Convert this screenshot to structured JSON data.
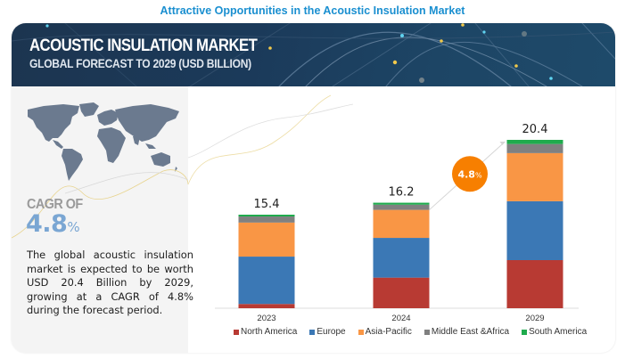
{
  "page": {
    "title": "Attractive Opportunities in the Acoustic Insulation Market"
  },
  "banner": {
    "title": "ACOUSTIC INSULATION MARKET",
    "subtitle": "GLOBAL FORECAST TO 2029 (USD BILLION)"
  },
  "side_panel": {
    "map_icon": "world-map-icon",
    "cagr_label": "CAGR OF",
    "cagr_number": "4.8",
    "cagr_unit": "%",
    "description": "The global acoustic insulation market is expected to be worth USD 20.4 Billion by 2029, growing at a CAGR of 4.8% during the forecast period."
  },
  "chart_data": {
    "type": "bar",
    "stacked": true,
    "title": "Acoustic Insulation Market, Global Forecast to 2029 (USD Billion)",
    "xlabel": "",
    "ylabel": "USD Billion",
    "categories": [
      "2023",
      "2024",
      "2029"
    ],
    "totals": [
      15.4,
      16.2,
      20.4
    ],
    "total_labels": [
      "15.4",
      "16.2",
      "20.4"
    ],
    "series": [
      {
        "name": "North America",
        "color": "#b83a33",
        "values": [
          0.7,
          4.7,
          5.8
        ]
      },
      {
        "name": "Europe",
        "color": "#3b78b5",
        "values": [
          7.8,
          6.1,
          7.1
        ]
      },
      {
        "name": "Asia-Pacific",
        "color": "#f99645",
        "values": [
          5.6,
          4.3,
          5.8
        ]
      },
      {
        "name": "Middle East &Africa",
        "color": "#808080",
        "values": [
          1.0,
          0.8,
          1.1
        ]
      },
      {
        "name": "South America",
        "color": "#1fab4d",
        "values": [
          0.3,
          0.3,
          0.5
        ]
      }
    ],
    "annotation": {
      "label_number": "4.8",
      "label_unit": "%",
      "meaning": "CAGR 2024-2029",
      "from": "2024",
      "to": "2029",
      "color": "#f77f00"
    },
    "legend_position": "bottom",
    "grid": false,
    "y_axis_visible": false
  }
}
